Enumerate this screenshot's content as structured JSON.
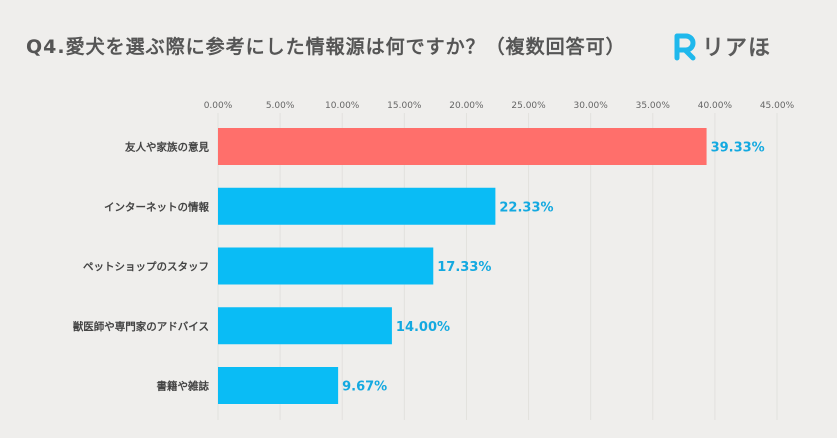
{
  "header": {
    "title": "Q4.愛犬を選ぶ際に参考にした情報源は何ですか？（複数回答可）",
    "brand": "リアほ",
    "brand_icon": "r-logo-icon"
  },
  "colors": {
    "background": "#efeeec",
    "highlight_bar": "#ff6f6b",
    "bar": "#0abcf5",
    "value_label": "#14a9e0",
    "brand_accent": "#1fb8ec"
  },
  "chart_data": {
    "type": "bar",
    "orientation": "horizontal",
    "title": "Q4.愛犬を選ぶ際に参考にした情報源は何ですか？（複数回答可）",
    "categories": [
      "友人や家族の意見",
      "インターネットの情報",
      "ペットショップのスタッフ",
      "獣医師や専門家のアドバイス",
      "書籍や雑誌"
    ],
    "values": [
      39.33,
      22.33,
      17.33,
      14.0,
      9.67
    ],
    "value_labels": [
      "39.33%",
      "22.33%",
      "17.33%",
      "14.00%",
      "9.67%"
    ],
    "highlight_index": 0,
    "xlim": [
      0,
      45
    ],
    "xticks": [
      "0.00%",
      "5.00%",
      "10.00%",
      "15.00%",
      "20.00%",
      "25.00%",
      "30.00%",
      "35.00%",
      "40.00%",
      "45.00%"
    ],
    "grid": true,
    "xlabel": "",
    "ylabel": ""
  }
}
